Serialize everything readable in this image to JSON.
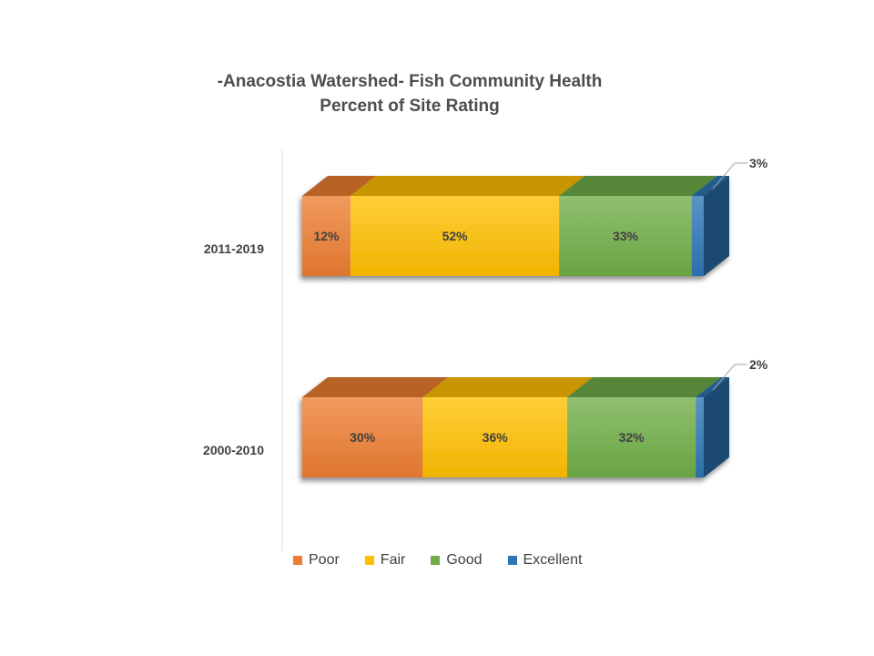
{
  "title": {
    "line1": "-Anacostia Watershed- Fish Community Health",
    "line2": "Percent of Site Rating"
  },
  "chart_data": {
    "type": "bar",
    "orientation": "horizontal",
    "stacked": true,
    "style": "3d",
    "categories": [
      "2011-2019",
      "2000-2010"
    ],
    "series": [
      {
        "name": "Poor",
        "values": [
          12,
          30
        ],
        "color": "#ed7d31"
      },
      {
        "name": "Fair",
        "values": [
          52,
          36
        ],
        "color": "#ffc000"
      },
      {
        "name": "Good",
        "values": [
          33,
          32
        ],
        "color": "#70ad47"
      },
      {
        "name": "Excellent",
        "values": [
          3,
          2
        ],
        "color": "#2e75b6"
      }
    ],
    "data_labels": [
      [
        "12%",
        "52%",
        "33%",
        "3%"
      ],
      [
        "30%",
        "36%",
        "32%",
        "2%"
      ]
    ],
    "xlim": [
      0,
      100
    ],
    "grid": false,
    "legend_position": "bottom"
  }
}
